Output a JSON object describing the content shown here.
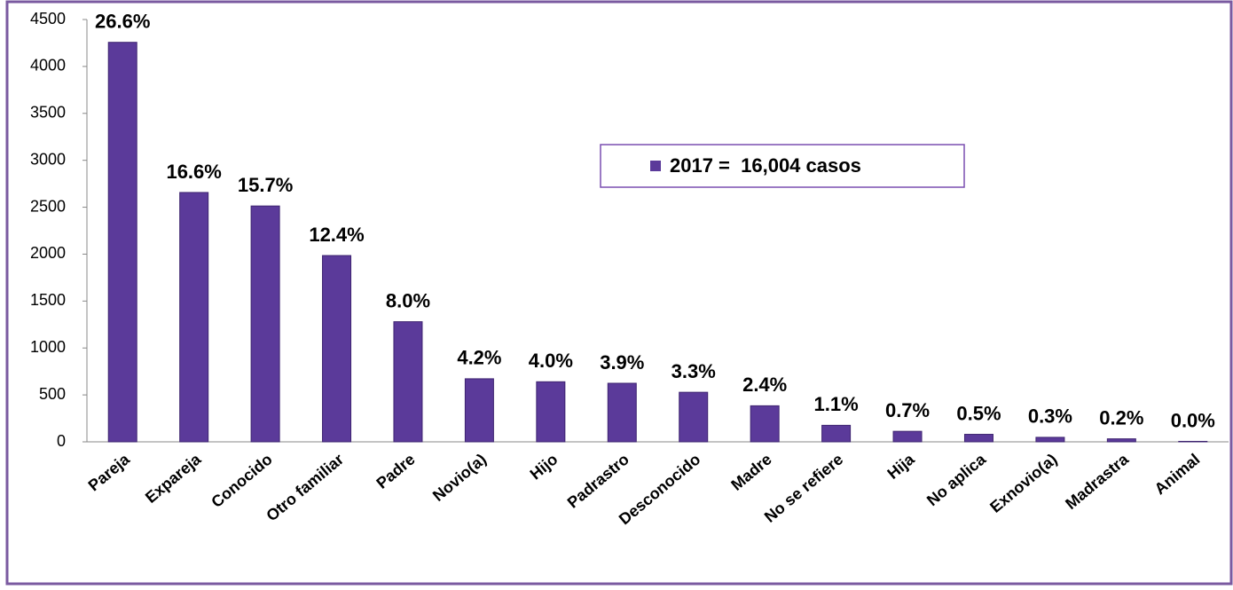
{
  "chart_data": {
    "type": "bar",
    "categories": [
      "Pareja",
      "Expareja",
      "Conocido",
      "Otro familiar",
      "Padre",
      "Novio(a)",
      "Hijo",
      "Padrastro",
      "Desconocido",
      "Madre",
      "No se refiere",
      "Hija",
      "No aplica",
      "Exnovio(a)",
      "Madrastra",
      "Animal"
    ],
    "series": [
      {
        "name": "2017 =  16,004 casos",
        "color": "#5b3a9a",
        "values": [
          4257,
          2657,
          2513,
          1985,
          1280,
          672,
          640,
          624,
          528,
          384,
          176,
          112,
          80,
          48,
          32,
          5
        ],
        "value_labels": [
          "26.6%",
          "16.6%",
          "15.7%",
          "12.4%",
          "8.0%",
          "4.2%",
          "4.0%",
          "3.9%",
          "3.3%",
          "2.4%",
          "1.1%",
          "0.7%",
          "0.5%",
          "0.3%",
          "0.2%",
          "0.0%"
        ]
      }
    ],
    "ylim": [
      0,
      4500
    ],
    "yticks": [
      0,
      500,
      1000,
      1500,
      2000,
      2500,
      3000,
      3500,
      4000,
      4500
    ],
    "grid": false,
    "legend": "upper right"
  }
}
